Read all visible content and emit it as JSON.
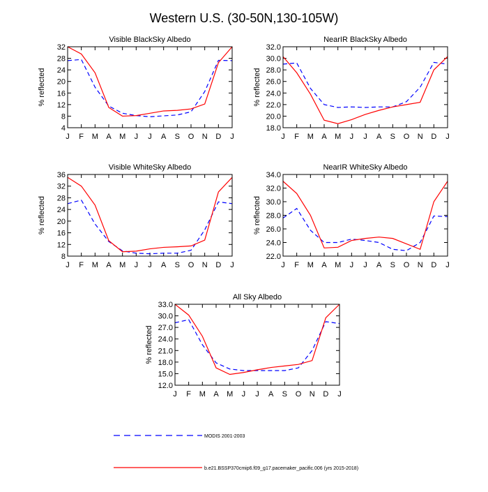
{
  "figure_title": "Western U.S. (30-50N,130-105W)",
  "legend": {
    "modis": "MODIS 2001-2003",
    "model": "b.e21.BSSP370cmip6.f09_g17.pacemaker_pacific.006 (yrs 2015-2018)"
  },
  "colors": {
    "modis": "#0000ff",
    "model": "#ff0000"
  },
  "chart_data": [
    {
      "type": "line",
      "title": "Visible BlackSky Albedo",
      "ylabel": "% reflected",
      "categories": [
        "J",
        "F",
        "M",
        "A",
        "M",
        "J",
        "J",
        "A",
        "S",
        "O",
        "N",
        "D",
        "J"
      ],
      "ylim": [
        4,
        32
      ],
      "yticks": [
        4,
        8,
        12,
        16,
        20,
        24,
        28,
        32
      ],
      "ytick_labels": [
        "4",
        "8",
        "12",
        "16",
        "20",
        "24",
        "28",
        "32"
      ],
      "series": [
        {
          "name": "MODIS 2001-2003",
          "values": [
            27.2,
            27.6,
            18.0,
            11.5,
            9.0,
            8.2,
            7.8,
            8.1,
            8.4,
            9.5,
            16.5,
            27.3,
            27.2
          ]
        },
        {
          "name": "b.e21.BSSP370cmip6.f09_g17.pacemaker_pacific.006 (yrs 2015-2018)",
          "values": [
            32.0,
            29.5,
            23.0,
            11.0,
            8.0,
            8.2,
            9.0,
            9.8,
            10.0,
            10.5,
            12.2,
            26.5,
            32.0
          ]
        }
      ]
    },
    {
      "type": "line",
      "title": "NearIR BlackSky Albedo",
      "ylabel": "% reflected",
      "categories": [
        "J",
        "F",
        "M",
        "A",
        "M",
        "J",
        "J",
        "A",
        "S",
        "O",
        "N",
        "D",
        "J"
      ],
      "ylim": [
        18,
        32
      ],
      "yticks": [
        18,
        20,
        22,
        24,
        26,
        28,
        30,
        32
      ],
      "ytick_labels": [
        "18.0",
        "20.0",
        "22.0",
        "24.0",
        "26.0",
        "28.0",
        "30.0",
        "32.0"
      ],
      "series": [
        {
          "name": "MODIS 2001-2003",
          "values": [
            29.0,
            29.2,
            24.8,
            22.0,
            21.5,
            21.6,
            21.5,
            21.6,
            21.6,
            22.5,
            25.0,
            29.3,
            29.0
          ]
        },
        {
          "name": "b.e21.BSSP370cmip6.f09_g17.pacemaker_pacific.006 (yrs 2015-2018)",
          "values": [
            30.3,
            27.5,
            23.8,
            19.3,
            18.7,
            19.4,
            20.3,
            21.0,
            21.6,
            22.0,
            22.4,
            28.0,
            30.3
          ]
        }
      ]
    },
    {
      "type": "line",
      "title": "Visible WhiteSky Albedo",
      "ylabel": "% reflected",
      "categories": [
        "J",
        "F",
        "M",
        "A",
        "M",
        "J",
        "J",
        "A",
        "S",
        "O",
        "N",
        "D",
        "J"
      ],
      "ylim": [
        8,
        36
      ],
      "yticks": [
        8,
        12,
        16,
        20,
        24,
        28,
        32,
        36
      ],
      "ytick_labels": [
        "8",
        "12",
        "16",
        "20",
        "24",
        "28",
        "32",
        "36"
      ],
      "series": [
        {
          "name": "MODIS 2001-2003",
          "values": [
            26.0,
            27.2,
            19.0,
            13.0,
            9.8,
            9.0,
            8.8,
            9.0,
            9.0,
            10.0,
            17.0,
            26.6,
            26.0
          ]
        },
        {
          "name": "b.e21.BSSP370cmip6.f09_g17.pacemaker_pacific.006 (yrs 2015-2018)",
          "values": [
            35.0,
            32.0,
            25.5,
            13.3,
            9.5,
            9.7,
            10.5,
            11.0,
            11.2,
            11.5,
            13.5,
            30.0,
            35.0
          ]
        }
      ]
    },
    {
      "type": "line",
      "title": "NearIR WhiteSky Albedo",
      "ylabel": "% reflected",
      "categories": [
        "J",
        "F",
        "M",
        "A",
        "M",
        "J",
        "J",
        "A",
        "S",
        "O",
        "N",
        "D",
        "J"
      ],
      "ylim": [
        22,
        34
      ],
      "yticks": [
        22,
        24,
        26,
        28,
        30,
        32,
        34
      ],
      "ytick_labels": [
        "22.0",
        "24.0",
        "26.0",
        "28.0",
        "30.0",
        "32.0",
        "34.0"
      ],
      "series": [
        {
          "name": "MODIS 2001-2003",
          "values": [
            27.6,
            29.0,
            25.8,
            24.0,
            24.0,
            24.5,
            24.3,
            24.0,
            23.0,
            22.8,
            24.0,
            27.9,
            27.8
          ]
        },
        {
          "name": "b.e21.BSSP370cmip6.f09_g17.pacemaker_pacific.006 (yrs 2015-2018)",
          "values": [
            33.0,
            31.2,
            28.0,
            23.2,
            23.3,
            24.3,
            24.6,
            24.8,
            24.6,
            23.8,
            23.0,
            30.0,
            33.0
          ]
        }
      ]
    },
    {
      "type": "line",
      "title": "All Sky Albedo",
      "ylabel": "% reflected",
      "categories": [
        "J",
        "F",
        "M",
        "A",
        "M",
        "J",
        "J",
        "A",
        "S",
        "O",
        "N",
        "D",
        "J"
      ],
      "ylim": [
        12,
        33
      ],
      "yticks": [
        12,
        15,
        18,
        21,
        24,
        27,
        30,
        33
      ],
      "ytick_labels": [
        "12.0",
        "15.0",
        "18.0",
        "21.0",
        "24.0",
        "27.0",
        "30.0",
        "33.0"
      ],
      "series": [
        {
          "name": "MODIS 2001-2003",
          "values": [
            28.2,
            29.0,
            22.5,
            17.8,
            16.2,
            15.8,
            15.8,
            15.8,
            15.8,
            16.5,
            21.0,
            28.5,
            28.0
          ]
        },
        {
          "name": "b.e21.BSSP370cmip6.f09_g17.pacemaker_pacific.006 (yrs 2015-2018)",
          "values": [
            33.0,
            30.2,
            24.7,
            16.5,
            14.8,
            15.3,
            16.0,
            16.6,
            17.0,
            17.4,
            18.4,
            29.5,
            33.0
          ]
        }
      ]
    }
  ]
}
